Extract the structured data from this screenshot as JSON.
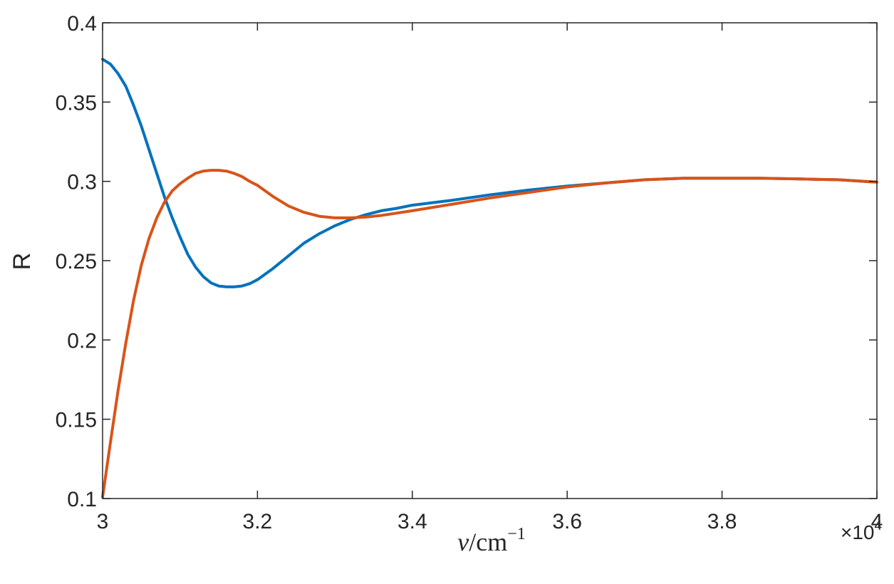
{
  "chart_data": {
    "type": "line",
    "xlabel": {
      "symbol": "ν",
      "slash_unit": "/cm",
      "exponent": "−1"
    },
    "ylabel": "R",
    "x_multiplier": {
      "base": "×10",
      "exponent": "4"
    },
    "xlim": [
      3.0,
      4.0
    ],
    "ylim": [
      0.1,
      0.4
    ],
    "xticks": [
      3.0,
      3.2,
      3.4,
      3.6,
      3.8,
      4.0
    ],
    "xtick_labels": [
      "3",
      "3.2",
      "3.4",
      "3.6",
      "3.8",
      "4"
    ],
    "yticks": [
      0.1,
      0.15,
      0.2,
      0.25,
      0.3,
      0.35,
      0.4
    ],
    "ytick_labels": [
      "0.1",
      "0.15",
      "0.2",
      "0.25",
      "0.3",
      "0.35",
      "0.4"
    ],
    "grid": false,
    "box": true,
    "series": [
      {
        "color": "#0072BD",
        "x": [
          3.0,
          3.01,
          3.02,
          3.03,
          3.04,
          3.05,
          3.06,
          3.07,
          3.08,
          3.09,
          3.1,
          3.11,
          3.12,
          3.13,
          3.14,
          3.15,
          3.16,
          3.17,
          3.18,
          3.19,
          3.2,
          3.22,
          3.24,
          3.26,
          3.28,
          3.3,
          3.32,
          3.34,
          3.36,
          3.38,
          3.4,
          3.45,
          3.5,
          3.55,
          3.6,
          3.65,
          3.7,
          3.75,
          3.8,
          3.85,
          3.9,
          3.95,
          4.0
        ],
        "y": [
          0.377,
          0.374,
          0.368,
          0.36,
          0.348,
          0.335,
          0.32,
          0.305,
          0.29,
          0.277,
          0.265,
          0.254,
          0.246,
          0.24,
          0.236,
          0.234,
          0.2335,
          0.2335,
          0.234,
          0.2355,
          0.238,
          0.245,
          0.253,
          0.261,
          0.267,
          0.272,
          0.276,
          0.279,
          0.2815,
          0.283,
          0.285,
          0.288,
          0.2915,
          0.2945,
          0.297,
          0.299,
          0.301,
          0.302,
          0.302,
          0.302,
          0.3015,
          0.301,
          0.2995
        ]
      },
      {
        "color": "#D95319",
        "x": [
          3.0,
          3.01,
          3.02,
          3.03,
          3.04,
          3.05,
          3.06,
          3.07,
          3.08,
          3.09,
          3.1,
          3.11,
          3.12,
          3.13,
          3.14,
          3.15,
          3.16,
          3.17,
          3.18,
          3.19,
          3.2,
          3.22,
          3.24,
          3.26,
          3.28,
          3.3,
          3.32,
          3.34,
          3.36,
          3.38,
          3.4,
          3.45,
          3.5,
          3.55,
          3.6,
          3.65,
          3.7,
          3.75,
          3.8,
          3.85,
          3.9,
          3.95,
          4.0
        ],
        "y": [
          0.101,
          0.135,
          0.168,
          0.198,
          0.225,
          0.247,
          0.264,
          0.277,
          0.287,
          0.294,
          0.2985,
          0.302,
          0.305,
          0.3065,
          0.307,
          0.307,
          0.3065,
          0.305,
          0.303,
          0.3,
          0.2975,
          0.2905,
          0.2845,
          0.2805,
          0.278,
          0.277,
          0.277,
          0.2775,
          0.2785,
          0.28,
          0.2815,
          0.2855,
          0.2895,
          0.293,
          0.2965,
          0.299,
          0.301,
          0.302,
          0.302,
          0.302,
          0.3015,
          0.301,
          0.2995
        ]
      }
    ]
  }
}
